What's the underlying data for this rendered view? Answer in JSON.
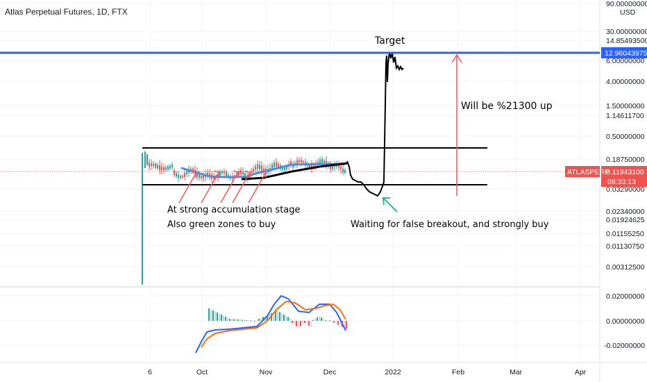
{
  "header": {
    "title": "Atlas Perpetual Futures, 1D, FTX",
    "currency": "USD"
  },
  "chart_data": {
    "type": "candlestick",
    "symbol": "ATLASPERP",
    "price_axis": {
      "scale": "log",
      "tick_labels": [
        "90.00000000",
        "30.00000000",
        "14.85493500",
        "6.00000000",
        "4.00000000",
        "1.50000000",
        "1.14611700",
        "0.50000000",
        "0.18750000",
        "0.03290000",
        "0.02340000",
        "0.01924625",
        "0.01155250",
        "0.01130750",
        "0.00312500"
      ],
      "last_price_label": "0.11943100",
      "countdown_label": "08:33:13",
      "target_line_label": "12.96043975"
    },
    "time_axis": {
      "tick_labels": [
        "6",
        "Oct",
        "Nov",
        "Dec",
        "2022",
        "Feb",
        "Mar",
        "Apr"
      ]
    },
    "macd_axis": {
      "tick_labels": [
        "0.02000000",
        "0.00000000",
        "-0.02000000"
      ]
    },
    "annotations": {
      "target": "Target",
      "upside": "Will be %21300 up",
      "accumulation_line1": "At strong accumulation stage",
      "accumulation_line2": "Also green zones to buy",
      "breakout": "Waiting for false breakout, and strongly buy"
    },
    "colors": {
      "up": "#26a69a",
      "down": "#ef5350",
      "target_line": "#2962ff",
      "price_badge": "#ef5350",
      "macd_line": "#2962ff",
      "signal_line": "#ff6d00",
      "arrow": "#ff5252"
    }
  }
}
